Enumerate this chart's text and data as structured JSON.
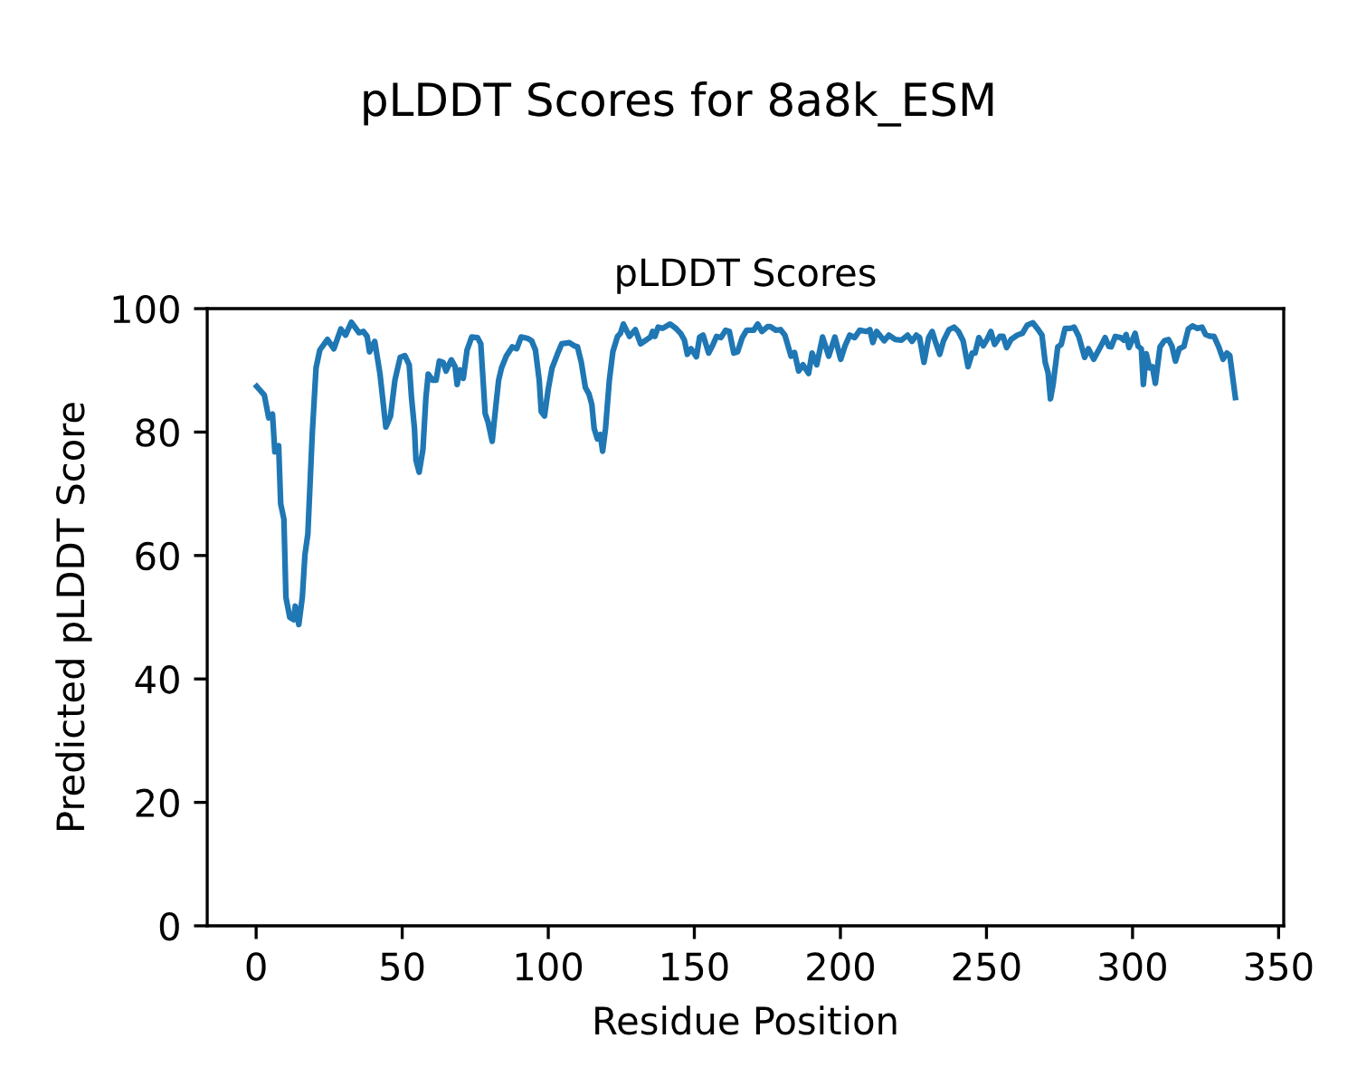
{
  "chart_data": {
    "type": "line",
    "title": "pLDDT Scores for 8a8k_ESM",
    "subtitle": "pLDDT Scores",
    "xlabel": "Residue Position",
    "ylabel": "Predicted pLDDT Score",
    "xlim": [
      -16.75,
      351.75
    ],
    "xticks": [
      0,
      50,
      100,
      150,
      200,
      250,
      300,
      350
    ],
    "ylim": [
      0,
      100
    ],
    "yticks": [
      0,
      20,
      40,
      60,
      80,
      100
    ],
    "grid": false,
    "legend": false,
    "series": [
      {
        "color": "#1f77b4",
        "x": [
          0.2,
          2.8,
          4.3,
          5.6,
          6.4,
          7.7,
          8.4,
          9.5,
          10.2,
          11.5,
          12.8,
          13.4,
          14.6,
          15.8,
          16.7,
          17.7,
          19.2,
          20.5,
          21.8,
          24.4,
          26.6,
          29.0,
          30.6,
          32.6,
          35.2,
          36.7,
          38.0,
          38.8,
          40.6,
          42.4,
          44.4,
          46.0,
          47.5,
          49.3,
          50.9,
          52.4,
          53.2,
          54.2,
          54.7,
          55.8,
          57.1,
          58.1,
          58.9,
          60.4,
          61.6,
          62.7,
          64.0,
          65.0,
          66.8,
          68.1,
          68.8,
          69.7,
          70.9,
          72.2,
          73.8,
          75.8,
          76.9,
          78.4,
          79.4,
          80.8,
          82.0,
          83.0,
          84.0,
          85.6,
          87.7,
          89.2,
          90.7,
          92.8,
          94.3,
          95.6,
          96.9,
          97.6,
          98.7,
          100.0,
          101.3,
          103.1,
          104.6,
          107.2,
          108.8,
          110.0,
          111.3,
          112.7,
          113.9,
          114.9,
          115.7,
          116.8,
          117.8,
          118.6,
          119.6,
          120.9,
          122.1,
          123.7,
          124.7,
          125.7,
          127.8,
          129.8,
          131.6,
          133.4,
          135.0,
          135.7,
          136.5,
          137.6,
          139.1,
          141.7,
          143.7,
          145.3,
          146.6,
          147.6,
          148.9,
          150.7,
          151.8,
          153.0,
          154.9,
          156.2,
          157.6,
          159.1,
          160.7,
          162.0,
          163.5,
          164.8,
          166.4,
          167.9,
          170.3,
          171.7,
          173.1,
          175.1,
          176.0,
          177.9,
          179.5,
          181.0,
          183.1,
          184.3,
          185.7,
          187.2,
          189.1,
          190.3,
          191.9,
          193.9,
          196.0,
          198.1,
          200.1,
          201.6,
          203.2,
          204.9,
          206.6,
          208.9,
          210.1,
          211.1,
          212.4,
          215.0,
          216.6,
          218.8,
          220.9,
          223.0,
          224.5,
          226.0,
          227.1,
          228.6,
          230.2,
          231.4,
          232.4,
          234.0,
          235.3,
          237.2,
          238.9,
          240.4,
          242.0,
          243.7,
          245.1,
          246.1,
          247.4,
          248.9,
          250.2,
          251.5,
          252.8,
          254.6,
          255.7,
          256.9,
          258.4,
          260.5,
          262.3,
          263.9,
          265.9,
          267.7,
          269.0,
          270.1,
          271.1,
          271.9,
          272.8,
          274.4,
          275.6,
          276.9,
          278.7,
          280.0,
          281.6,
          283.6,
          284.9,
          286.7,
          289.0,
          290.6,
          291.9,
          292.7,
          294.1,
          296.0,
          297.0,
          297.8,
          298.8,
          300.9,
          301.9,
          303.0,
          303.7,
          304.7,
          305.8,
          306.8,
          307.8,
          309.4,
          310.9,
          312.3,
          313.5,
          314.7,
          316.0,
          317.6,
          319.1,
          320.5,
          322.2,
          323.8,
          325.0,
          326.7,
          327.9,
          329.5,
          331.0,
          332.3,
          333.3,
          335.2
        ],
        "values": [
          87.4,
          86.0,
          82.3,
          82.9,
          76.8,
          77.8,
          68.4,
          65.9,
          53.2,
          50.0,
          49.6,
          51.8,
          48.8,
          53.2,
          60.1,
          63.5,
          79.6,
          90.4,
          93.3,
          95.0,
          93.5,
          96.7,
          95.7,
          97.8,
          96.1,
          96.3,
          95.5,
          93.0,
          94.7,
          89.4,
          80.8,
          82.6,
          88.4,
          92.1,
          92.4,
          90.9,
          85.5,
          80.6,
          75.5,
          73.5,
          77.2,
          85.5,
          89.4,
          88.4,
          88.4,
          91.5,
          91.3,
          89.9,
          91.7,
          90.6,
          87.7,
          90.1,
          88.7,
          93.3,
          95.4,
          95.3,
          94.3,
          83.0,
          81.6,
          78.5,
          84.0,
          88.4,
          90.4,
          92.3,
          93.8,
          93.5,
          95.4,
          95.2,
          94.8,
          93.3,
          88.4,
          83.3,
          82.6,
          87.0,
          90.4,
          92.6,
          94.3,
          94.5,
          94.0,
          93.8,
          91.3,
          87.2,
          86.2,
          84.5,
          80.6,
          78.9,
          79.6,
          76.9,
          80.6,
          88.4,
          93.0,
          95.5,
          96.0,
          97.5,
          95.5,
          96.6,
          94.3,
          94.9,
          95.4,
          96.3,
          95.5,
          97.0,
          96.8,
          97.5,
          96.8,
          96.0,
          94.9,
          92.6,
          93.5,
          92.2,
          95.4,
          95.7,
          92.8,
          94.0,
          95.5,
          95.3,
          96.5,
          96.3,
          92.8,
          93.0,
          95.3,
          96.5,
          96.5,
          97.5,
          96.3,
          97.1,
          97.1,
          96.5,
          96.6,
          95.7,
          92.3,
          92.9,
          89.9,
          90.9,
          89.5,
          92.8,
          90.9,
          95.4,
          92.3,
          95.4,
          91.8,
          94.0,
          95.7,
          95.3,
          96.5,
          96.3,
          96.6,
          94.5,
          96.3,
          94.8,
          95.7,
          95.0,
          94.9,
          95.7,
          94.7,
          95.7,
          95.3,
          91.3,
          95.3,
          96.3,
          94.8,
          92.6,
          94.8,
          96.6,
          97.0,
          96.3,
          94.8,
          90.6,
          92.8,
          92.8,
          95.3,
          94.0,
          95.0,
          96.3,
          94.2,
          95.5,
          95.5,
          93.7,
          95.0,
          95.7,
          96.0,
          97.3,
          97.7,
          96.6,
          95.7,
          91.3,
          89.6,
          85.4,
          87.7,
          93.8,
          94.2,
          96.8,
          96.8,
          97.0,
          95.5,
          92.1,
          93.5,
          91.8,
          93.8,
          95.3,
          93.9,
          93.8,
          95.5,
          95.3,
          94.9,
          95.8,
          93.7,
          96.0,
          93.9,
          93.5,
          87.7,
          92.7,
          90.4,
          90.6,
          87.9,
          93.8,
          94.8,
          95.0,
          93.9,
          91.5,
          93.5,
          93.9,
          96.7,
          97.2,
          96.8,
          97.0,
          95.8,
          95.5,
          95.5,
          93.8,
          91.8,
          92.8,
          92.4,
          85.6
        ]
      }
    ]
  }
}
